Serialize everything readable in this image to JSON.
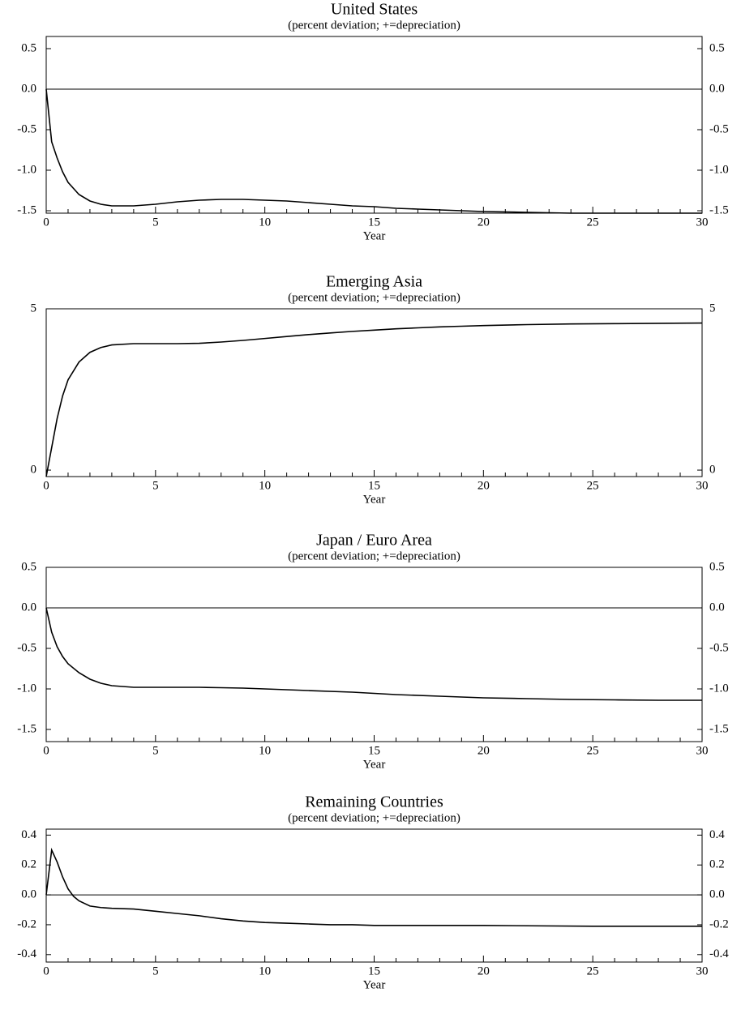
{
  "chart_data": [
    {
      "type": "line",
      "title": "United States",
      "subtitle": "(percent deviation; +=depreciation)",
      "xlabel": "Year",
      "x": [
        0,
        0.25,
        0.5,
        0.75,
        1,
        1.5,
        2,
        2.5,
        3,
        4,
        5,
        6,
        7,
        8,
        9,
        10,
        11,
        12,
        13,
        14,
        15,
        16,
        17,
        18,
        19,
        20,
        22,
        24,
        26,
        28,
        30
      ],
      "values": [
        0,
        -0.65,
        -0.85,
        -1.02,
        -1.15,
        -1.3,
        -1.38,
        -1.42,
        -1.44,
        -1.44,
        -1.42,
        -1.39,
        -1.37,
        -1.36,
        -1.36,
        -1.37,
        -1.38,
        -1.4,
        -1.42,
        -1.44,
        -1.45,
        -1.47,
        -1.48,
        -1.49,
        -1.5,
        -1.51,
        -1.52,
        -1.53,
        -1.53,
        -1.53,
        -1.53
      ],
      "color": "#000000",
      "reference_line": 0,
      "xlim": [
        0,
        30
      ],
      "xticks": [
        0,
        5,
        10,
        15,
        20,
        25,
        30
      ],
      "ylim": [
        -1.53,
        0.65
      ],
      "yticks": [
        0.5,
        {
          "value": 0,
          "label": "0.0"
        },
        -0.5,
        {
          "value": -1,
          "label": "-1.0"
        },
        -1.5
      ]
    },
    {
      "type": "line",
      "title": "Emerging Asia",
      "subtitle": "(percent deviation; +=depreciation)",
      "xlabel": "Year",
      "x": [
        0,
        0.25,
        0.5,
        0.75,
        1,
        1.5,
        2,
        2.5,
        3,
        4,
        5,
        6,
        7,
        8,
        9,
        10,
        11,
        12,
        13,
        14,
        15,
        16,
        17,
        18,
        19,
        20,
        22,
        24,
        26,
        28,
        30
      ],
      "values": [
        -0.2,
        0.7,
        1.6,
        2.3,
        2.8,
        3.35,
        3.65,
        3.8,
        3.88,
        3.92,
        3.92,
        3.92,
        3.93,
        3.97,
        4.02,
        4.08,
        4.14,
        4.2,
        4.25,
        4.3,
        4.34,
        4.38,
        4.41,
        4.44,
        4.46,
        4.48,
        4.51,
        4.53,
        4.54,
        4.55,
        4.56
      ],
      "color": "#000000",
      "xlim": [
        0,
        30
      ],
      "xticks": [
        0,
        5,
        10,
        15,
        20,
        25,
        30
      ],
      "ylim": [
        -0.2,
        5
      ],
      "yticks": [
        0,
        5
      ]
    },
    {
      "type": "line",
      "title": "Japan / Euro Area",
      "subtitle": "(percent deviation; +=depreciation)",
      "xlabel": "Year",
      "x": [
        0,
        0.25,
        0.5,
        0.75,
        1,
        1.5,
        2,
        2.5,
        3,
        4,
        5,
        6,
        7,
        8,
        9,
        10,
        12,
        14,
        16,
        18,
        20,
        22,
        24,
        26,
        28,
        30
      ],
      "values": [
        0,
        -0.3,
        -0.48,
        -0.6,
        -0.69,
        -0.8,
        -0.88,
        -0.93,
        -0.96,
        -0.98,
        -0.98,
        -0.98,
        -0.98,
        -0.985,
        -0.99,
        -1.0,
        -1.02,
        -1.04,
        -1.07,
        -1.09,
        -1.11,
        -1.12,
        -1.13,
        -1.135,
        -1.14,
        -1.14
      ],
      "color": "#000000",
      "reference_line": 0,
      "xlim": [
        0,
        30
      ],
      "xticks": [
        0,
        5,
        10,
        15,
        20,
        25,
        30
      ],
      "ylim": [
        -1.65,
        0.5
      ],
      "yticks": [
        0.5,
        {
          "value": 0,
          "label": "0.0"
        },
        -0.5,
        {
          "value": -1,
          "label": "-1.0"
        },
        -1.5
      ]
    },
    {
      "type": "line",
      "title": "Remaining Countries",
      "subtitle": "(percent deviation; +=depreciation)",
      "xlabel": "Year",
      "x": [
        0,
        0.25,
        0.5,
        0.75,
        1,
        1.25,
        1.5,
        2,
        2.5,
        3,
        4,
        5,
        6,
        7,
        8,
        9,
        10,
        11,
        12,
        13,
        14,
        15,
        17,
        20,
        25,
        30
      ],
      "values": [
        0,
        0.3,
        0.22,
        0.12,
        0.04,
        -0.01,
        -0.04,
        -0.075,
        -0.085,
        -0.09,
        -0.095,
        -0.11,
        -0.125,
        -0.14,
        -0.16,
        -0.175,
        -0.185,
        -0.19,
        -0.195,
        -0.2,
        -0.2,
        -0.205,
        -0.205,
        -0.205,
        -0.21,
        -0.21
      ],
      "color": "#000000",
      "reference_line": 0,
      "xlim": [
        0,
        30
      ],
      "xticks": [
        0,
        5,
        10,
        15,
        20,
        25,
        30
      ],
      "ylim": [
        -0.45,
        0.44
      ],
      "yticks": [
        0.4,
        0.2,
        {
          "value": 0,
          "label": "0.0"
        },
        -0.2,
        -0.4
      ]
    }
  ]
}
